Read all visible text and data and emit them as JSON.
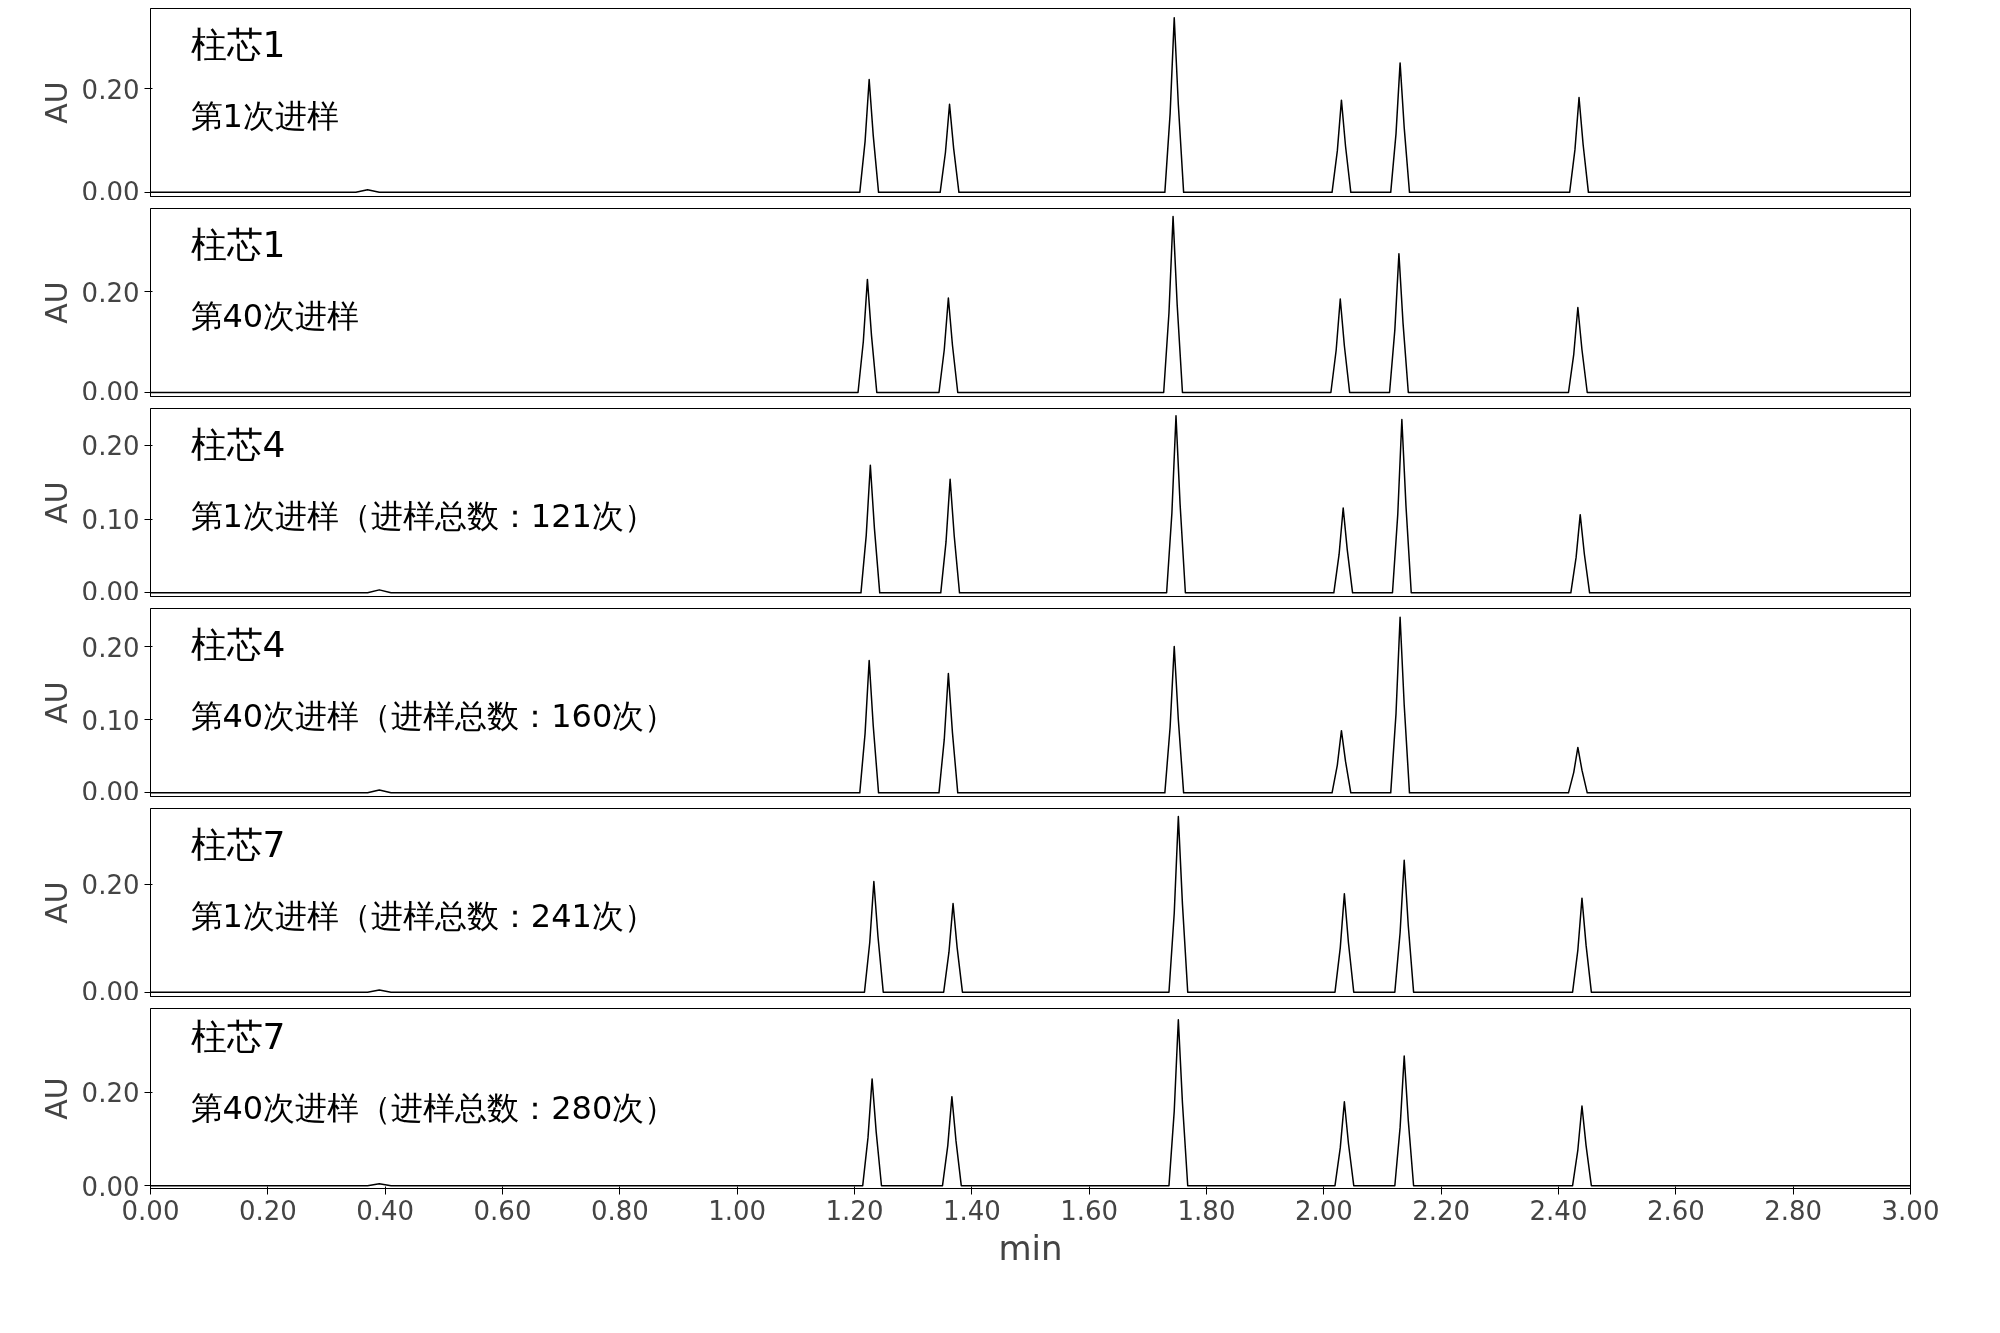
{
  "chart_data": [
    {
      "type": "line",
      "ylabel": "AU",
      "annotations": [
        "柱芯1",
        "第1次进样"
      ],
      "xlim": [
        0,
        3
      ],
      "ylim": [
        -0.008,
        0.355
      ],
      "yticks": [
        {
          "value": 0,
          "label": "0.00"
        },
        {
          "value": 0.2,
          "label": "0.20"
        }
      ],
      "tick_labels": "y",
      "grid": false,
      "marker": "none",
      "line_style": "solid",
      "series": [
        {
          "color": "#000000",
          "x": [
            0,
            0.35,
            0.37,
            0.39,
            1.209,
            1.218,
            1.225,
            1.232,
            1.241,
            1.346,
            1.355,
            1.362,
            1.369,
            1.378,
            1.729,
            1.738,
            1.745,
            1.752,
            1.761,
            2.014,
            2.023,
            2.03,
            2.037,
            2.046,
            2.114,
            2.123,
            2.13,
            2.137,
            2.146,
            2.419,
            2.428,
            2.435,
            2.442,
            2.451,
            3.0
          ],
          "values": [
            0,
            0,
            0.005,
            0,
            0,
            0.098,
            0.218,
            0.109,
            0,
            0,
            0.077,
            0.17,
            0.085,
            0,
            0,
            0.152,
            0.337,
            0.169,
            0,
            0,
            0.08,
            0.178,
            0.089,
            0,
            0,
            0.113,
            0.25,
            0.125,
            0,
            0,
            0.082,
            0.183,
            0.092,
            0,
            0
          ]
        }
      ]
    },
    {
      "type": "line",
      "ylabel": "AU",
      "annotations": [
        "柱芯1",
        "第40次进样"
      ],
      "xlim": [
        0,
        3
      ],
      "ylim": [
        -0.008,
        0.366
      ],
      "yticks": [
        {
          "value": 0,
          "label": "0.00"
        },
        {
          "value": 0.2,
          "label": "0.20"
        }
      ],
      "tick_labels": "y",
      "grid": false,
      "marker": "none",
      "line_style": "solid",
      "series": [
        {
          "color": "#000000",
          "x": [
            0,
            1.206,
            1.215,
            1.222,
            1.229,
            1.238,
            1.344,
            1.353,
            1.36,
            1.367,
            1.376,
            1.727,
            1.736,
            1.743,
            1.75,
            1.759,
            2.012,
            2.021,
            2.028,
            2.035,
            2.044,
            2.112,
            2.121,
            2.128,
            2.135,
            2.144,
            2.417,
            2.426,
            2.433,
            2.44,
            2.449,
            3.0
          ],
          "values": [
            0,
            0,
            0.101,
            0.225,
            0.113,
            0,
            0,
            0.085,
            0.188,
            0.094,
            0,
            0,
            0.158,
            0.35,
            0.175,
            0,
            0,
            0.084,
            0.186,
            0.093,
            0,
            0,
            0.124,
            0.276,
            0.138,
            0,
            0,
            0.076,
            0.169,
            0.085,
            0,
            0
          ]
        }
      ]
    },
    {
      "type": "line",
      "ylabel": "AU",
      "annotations": [
        "柱芯4",
        "第1次进样（进样总数：121次）"
      ],
      "xlim": [
        0,
        3
      ],
      "ylim": [
        -0.005,
        0.25
      ],
      "yticks": [
        {
          "value": 0,
          "label": "0.00"
        },
        {
          "value": 0.1,
          "label": "0.10"
        },
        {
          "value": 0.2,
          "label": "0.20"
        }
      ],
      "tick_labels": "y",
      "grid": false,
      "marker": "none",
      "line_style": "solid",
      "series": [
        {
          "color": "#000000",
          "x": [
            0,
            0.37,
            0.39,
            0.41,
            1.211,
            1.22,
            1.227,
            1.234,
            1.243,
            1.347,
            1.356,
            1.363,
            1.37,
            1.379,
            1.732,
            1.741,
            1.748,
            1.755,
            1.764,
            2.017,
            2.026,
            2.033,
            2.04,
            2.049,
            2.117,
            2.126,
            2.133,
            2.14,
            2.149,
            2.421,
            2.43,
            2.437,
            2.444,
            2.453,
            3.0
          ],
          "values": [
            0,
            0,
            0.004,
            0,
            0,
            0.078,
            0.173,
            0.087,
            0,
            0,
            0.069,
            0.154,
            0.077,
            0,
            0,
            0.108,
            0.24,
            0.12,
            0,
            0,
            0.052,
            0.115,
            0.058,
            0,
            0,
            0.106,
            0.235,
            0.118,
            0,
            0,
            0.048,
            0.106,
            0.053,
            0,
            0
          ]
        }
      ]
    },
    {
      "type": "line",
      "ylabel": "AU",
      "annotations": [
        "柱芯4",
        "第40次进样（进样总数：160次）"
      ],
      "xlim": [
        0,
        3
      ],
      "ylim": [
        -0.005,
        0.252
      ],
      "yticks": [
        {
          "value": 0,
          "label": "0.00"
        },
        {
          "value": 0.1,
          "label": "0.10"
        },
        {
          "value": 0.2,
          "label": "0.20"
        }
      ],
      "tick_labels": "y",
      "grid": false,
      "marker": "none",
      "line_style": "solid",
      "series": [
        {
          "color": "#000000",
          "x": [
            0,
            0.37,
            0.39,
            0.41,
            1.209,
            1.218,
            1.225,
            1.232,
            1.241,
            1.344,
            1.353,
            1.36,
            1.367,
            1.376,
            1.729,
            1.738,
            1.745,
            1.752,
            1.761,
            2.014,
            2.023,
            2.03,
            2.037,
            2.046,
            2.114,
            2.123,
            2.13,
            2.137,
            2.146,
            2.417,
            2.426,
            2.433,
            2.44,
            2.449,
            3.0
          ],
          "values": [
            0,
            0,
            0.004,
            0,
            0,
            0.081,
            0.181,
            0.091,
            0,
            0,
            0.073,
            0.163,
            0.082,
            0,
            0,
            0.09,
            0.2,
            0.1,
            0,
            0,
            0.038,
            0.085,
            0.043,
            0,
            0,
            0.108,
            0.24,
            0.12,
            0,
            0,
            0.028,
            0.062,
            0.031,
            0,
            0
          ]
        }
      ]
    },
    {
      "type": "line",
      "ylabel": "AU",
      "annotations": [
        "柱芯7",
        "第1次进样（进样总数：241次）"
      ],
      "xlim": [
        0,
        3
      ],
      "ylim": [
        -0.008,
        0.34
      ],
      "yticks": [
        {
          "value": 0,
          "label": "0.00"
        },
        {
          "value": 0.2,
          "label": "0.20"
        }
      ],
      "tick_labels": "y",
      "grid": false,
      "marker": "none",
      "line_style": "solid",
      "series": [
        {
          "color": "#000000",
          "x": [
            0,
            0.37,
            0.39,
            0.41,
            1.217,
            1.226,
            1.233,
            1.24,
            1.249,
            1.352,
            1.361,
            1.368,
            1.375,
            1.384,
            1.736,
            1.745,
            1.752,
            1.759,
            1.768,
            2.019,
            2.028,
            2.035,
            2.042,
            2.051,
            2.121,
            2.13,
            2.137,
            2.144,
            2.153,
            2.424,
            2.433,
            2.44,
            2.447,
            2.456,
            3.0
          ],
          "values": [
            0,
            0,
            0.004,
            0,
            0,
            0.092,
            0.205,
            0.103,
            0,
            0,
            0.074,
            0.164,
            0.082,
            0,
            0,
            0.146,
            0.325,
            0.163,
            0,
            0,
            0.082,
            0.182,
            0.091,
            0,
            0,
            0.11,
            0.244,
            0.122,
            0,
            0,
            0.078,
            0.174,
            0.087,
            0,
            0
          ]
        }
      ]
    },
    {
      "type": "line",
      "ylabel": "AU",
      "xlabel": "min",
      "annotations": [
        "柱芯7",
        "第40次进样（进样总数：280次）"
      ],
      "xlim": [
        0,
        3
      ],
      "ylim": [
        -0.006,
        0.38
      ],
      "xticks": [
        {
          "value": 0,
          "label": "0.00"
        },
        {
          "value": 0.2,
          "label": "0.20"
        },
        {
          "value": 0.4,
          "label": "0.40"
        },
        {
          "value": 0.6,
          "label": "0.60"
        },
        {
          "value": 0.8,
          "label": "0.80"
        },
        {
          "value": 1.0,
          "label": "1.00"
        },
        {
          "value": 1.2,
          "label": "1.20"
        },
        {
          "value": 1.4,
          "label": "1.40"
        },
        {
          "value": 1.6,
          "label": "1.60"
        },
        {
          "value": 1.8,
          "label": "1.80"
        },
        {
          "value": 2.0,
          "label": "2.00"
        },
        {
          "value": 2.2,
          "label": "2.20"
        },
        {
          "value": 2.4,
          "label": "2.40"
        },
        {
          "value": 2.6,
          "label": "2.60"
        },
        {
          "value": 2.8,
          "label": "2.80"
        },
        {
          "value": 3.0,
          "label": "3.00"
        }
      ],
      "yticks": [
        {
          "value": 0,
          "label": "0.00"
        },
        {
          "value": 0.2,
          "label": "0.20"
        }
      ],
      "grid": false,
      "marker": "none",
      "line_style": "solid",
      "series": [
        {
          "color": "#000000",
          "x": [
            0,
            0.37,
            0.39,
            0.41,
            1.214,
            1.223,
            1.23,
            1.237,
            1.246,
            1.35,
            1.359,
            1.366,
            1.373,
            1.382,
            1.736,
            1.745,
            1.752,
            1.759,
            1.768,
            2.019,
            2.028,
            2.035,
            2.042,
            2.051,
            2.121,
            2.13,
            2.137,
            2.144,
            2.153,
            2.424,
            2.433,
            2.44,
            2.447,
            2.456,
            3.0
          ],
          "values": [
            0,
            0,
            0.004,
            0,
            0,
            0.103,
            0.229,
            0.115,
            0,
            0,
            0.086,
            0.191,
            0.096,
            0,
            0,
            0.16,
            0.356,
            0.178,
            0,
            0,
            0.081,
            0.18,
            0.09,
            0,
            0,
            0.125,
            0.278,
            0.139,
            0,
            0,
            0.077,
            0.171,
            0.086,
            0,
            0
          ]
        }
      ]
    }
  ]
}
